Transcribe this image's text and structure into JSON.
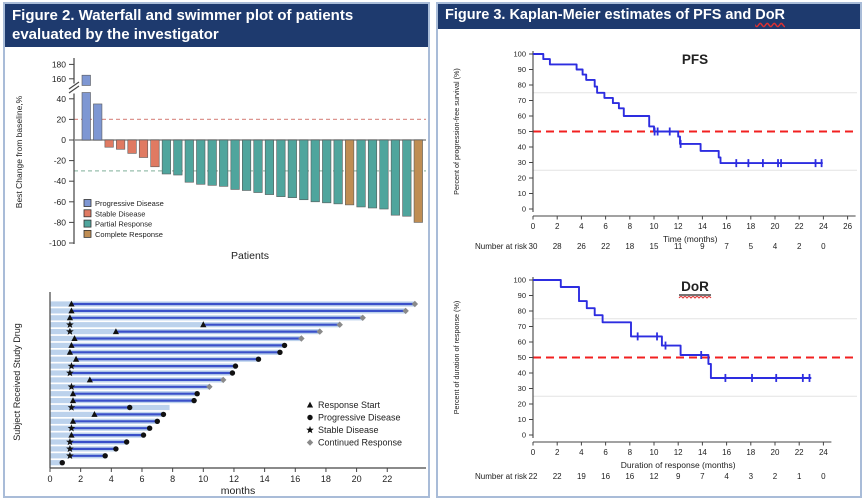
{
  "figure2": {
    "title": "Figure 2. Waterfall and swimmer plot of patients evaluated by the investigator"
  },
  "figure3": {
    "title_prefix": "Figure 3. Kaplan-Meier estimates of  PFS and  ",
    "title_dor": "DoR"
  },
  "colors": {
    "header_bg": "#1e3a6e",
    "panel_border": "#a9bcd8",
    "progressive": "#7e97d3",
    "stable": "#e07a62",
    "partial": "#4fa59d",
    "complete": "#bf8d53",
    "bar_stroke": "#5a5a5a",
    "ref_pos": "#dd958f",
    "ref_neg": "#98bfad",
    "swim_bar": "#bcd2ec",
    "swim_resp": "#3a50c9",
    "km_line": "#2d2de0",
    "median_line": "#f22020",
    "gray_ref": "#e3e3e3",
    "diamond": "#8a8a8a"
  },
  "chart_data": [
    {
      "id": "waterfall",
      "type": "bar",
      "xlabel": "Patients",
      "ylabel": "Best Change from baseline,%",
      "yticks": [
        180,
        160,
        40,
        20,
        0,
        -20,
        -40,
        -60,
        -80,
        -100
      ],
      "axis_break_between": [
        45,
        150
      ],
      "ref_lines": [
        {
          "y": 20,
          "color_key": "ref_pos"
        },
        {
          "y": -30,
          "color_key": "ref_neg"
        }
      ],
      "legend": [
        {
          "label": "Progressive Disease",
          "type": "progressive"
        },
        {
          "label": "Stable Disease",
          "type": "stable"
        },
        {
          "label": "Partial Response",
          "type": "partial"
        },
        {
          "label": "Complete Response",
          "type": "complete"
        }
      ],
      "bars": [
        {
          "v": 165,
          "t": "progressive"
        },
        {
          "v": 35,
          "t": "progressive"
        },
        {
          "v": -7,
          "t": "stable"
        },
        {
          "v": -9,
          "t": "stable"
        },
        {
          "v": -13,
          "t": "stable"
        },
        {
          "v": -17,
          "t": "stable"
        },
        {
          "v": -26,
          "t": "stable"
        },
        {
          "v": -33,
          "t": "partial"
        },
        {
          "v": -34,
          "t": "partial"
        },
        {
          "v": -41,
          "t": "partial"
        },
        {
          "v": -43,
          "t": "partial"
        },
        {
          "v": -44,
          "t": "partial"
        },
        {
          "v": -45,
          "t": "partial"
        },
        {
          "v": -48,
          "t": "partial"
        },
        {
          "v": -49,
          "t": "partial"
        },
        {
          "v": -51,
          "t": "partial"
        },
        {
          "v": -53,
          "t": "partial"
        },
        {
          "v": -55,
          "t": "partial"
        },
        {
          "v": -56,
          "t": "partial"
        },
        {
          "v": -58,
          "t": "partial"
        },
        {
          "v": -60,
          "t": "partial"
        },
        {
          "v": -61,
          "t": "partial"
        },
        {
          "v": -62,
          "t": "partial"
        },
        {
          "v": -63,
          "t": "complete"
        },
        {
          "v": -65,
          "t": "partial"
        },
        {
          "v": -66,
          "t": "partial"
        },
        {
          "v": -67,
          "t": "partial"
        },
        {
          "v": -73,
          "t": "partial"
        },
        {
          "v": -74,
          "t": "partial"
        },
        {
          "v": -80,
          "t": "complete"
        }
      ]
    },
    {
      "id": "swimmer",
      "type": "swimmer",
      "xlabel": "months",
      "ylabel": "Subject Received Study Drug",
      "xticks": [
        0,
        2,
        4,
        6,
        8,
        10,
        12,
        14,
        16,
        18,
        20,
        22
      ],
      "xmax": 24.5,
      "legend": [
        {
          "marker": "triangle",
          "label": "Response Start"
        },
        {
          "marker": "circle",
          "label": "Progressive Disease"
        },
        {
          "marker": "star",
          "label": "Stable Disease"
        },
        {
          "marker": "diamond",
          "label": "Continued Response"
        }
      ],
      "rows": [
        {
          "bar": 23.8,
          "line": [
            1.4,
            23.8
          ],
          "markers": [
            [
              "triangle",
              1.4
            ],
            [
              "diamond",
              23.8
            ]
          ]
        },
        {
          "bar": 23.2,
          "line": [
            1.4,
            23.2
          ],
          "markers": [
            [
              "triangle",
              1.4
            ],
            [
              "diamond",
              23.2
            ]
          ]
        },
        {
          "bar": 20.4,
          "line": [
            1.3,
            20.4
          ],
          "markers": [
            [
              "triangle",
              1.3
            ],
            [
              "diamond",
              20.4
            ]
          ]
        },
        {
          "bar": 18.9,
          "line": [
            10.0,
            18.9
          ],
          "markers": [
            [
              "star",
              1.3
            ],
            [
              "triangle",
              10.0
            ],
            [
              "diamond",
              18.9
            ]
          ]
        },
        {
          "bar": 17.6,
          "line": [
            4.3,
            17.6
          ],
          "markers": [
            [
              "star",
              1.3
            ],
            [
              "triangle",
              4.3
            ],
            [
              "diamond",
              17.6
            ]
          ]
        },
        {
          "bar": 16.4,
          "line": [
            1.6,
            16.4
          ],
          "markers": [
            [
              "triangle",
              1.6
            ],
            [
              "diamond",
              16.4
            ]
          ]
        },
        {
          "bar": 15.3,
          "line": [
            1.4,
            15.3
          ],
          "markers": [
            [
              "triangle",
              1.4
            ],
            [
              "circle",
              15.3
            ]
          ]
        },
        {
          "bar": 15.0,
          "line": [
            1.3,
            15.0
          ],
          "markers": [
            [
              "triangle",
              1.3
            ],
            [
              "circle",
              15.0
            ]
          ]
        },
        {
          "bar": 13.6,
          "line": [
            1.7,
            13.6
          ],
          "markers": [
            [
              "triangle",
              1.7
            ],
            [
              "circle",
              13.6
            ]
          ]
        },
        {
          "bar": 12.1,
          "line": [
            1.4,
            12.1
          ],
          "markers": [
            [
              "star",
              1.4
            ],
            [
              "circle",
              12.1
            ]
          ]
        },
        {
          "bar": 11.9,
          "line": [
            1.3,
            11.9
          ],
          "markers": [
            [
              "star",
              1.3
            ],
            [
              "circle",
              11.9
            ]
          ]
        },
        {
          "bar": 11.3,
          "line": [
            2.6,
            11.3
          ],
          "markers": [
            [
              "triangle",
              2.6
            ],
            [
              "diamond",
              11.3
            ]
          ]
        },
        {
          "bar": 10.4,
          "line": [
            1.4,
            10.4
          ],
          "markers": [
            [
              "star",
              1.4
            ],
            [
              "diamond",
              10.4
            ]
          ]
        },
        {
          "bar": 9.6,
          "line": [
            1.5,
            9.6
          ],
          "markers": [
            [
              "triangle",
              1.5
            ],
            [
              "circle",
              9.6
            ]
          ]
        },
        {
          "bar": 9.4,
          "line": [
            1.5,
            9.4
          ],
          "markers": [
            [
              "triangle",
              1.5
            ],
            [
              "circle",
              9.4
            ]
          ]
        },
        {
          "bar": 7.8,
          "line": [
            1.4,
            5.2
          ],
          "markers": [
            [
              "star",
              1.4
            ],
            [
              "circle",
              5.2
            ]
          ]
        },
        {
          "bar": 7.4,
          "line": [
            2.9,
            7.4
          ],
          "markers": [
            [
              "triangle",
              2.9
            ],
            [
              "circle",
              7.4
            ]
          ]
        },
        {
          "bar": 7.0,
          "line": [
            1.5,
            7.0
          ],
          "markers": [
            [
              "triangle",
              1.5
            ],
            [
              "circle",
              7.0
            ]
          ]
        },
        {
          "bar": 6.5,
          "line": [
            1.4,
            6.5
          ],
          "markers": [
            [
              "star",
              1.4
            ],
            [
              "circle",
              6.5
            ]
          ]
        },
        {
          "bar": 6.1,
          "line": [
            1.4,
            6.1
          ],
          "markers": [
            [
              "triangle",
              1.4
            ],
            [
              "circle",
              6.1
            ]
          ]
        },
        {
          "bar": 5.0,
          "line": [
            1.3,
            5.0
          ],
          "markers": [
            [
              "star",
              1.3
            ],
            [
              "circle",
              5.0
            ]
          ]
        },
        {
          "bar": 4.3,
          "line": [
            1.3,
            4.3
          ],
          "markers": [
            [
              "star",
              1.3
            ],
            [
              "circle",
              4.3
            ]
          ]
        },
        {
          "bar": 3.6,
          "line": [
            1.3,
            3.6
          ],
          "markers": [
            [
              "star",
              1.3
            ],
            [
              "circle",
              3.6
            ]
          ]
        },
        {
          "bar": 0.9,
          "line": null,
          "markers": [
            [
              "circle",
              0.8
            ]
          ]
        }
      ]
    },
    {
      "id": "km-pfs",
      "type": "line",
      "title": "PFS",
      "title_underline": false,
      "ylabel": "Percent of progression-free survival (%)",
      "xlabel": "Time (months)",
      "yticks": [
        100,
        90,
        80,
        70,
        60,
        50,
        40,
        30,
        20,
        10,
        0
      ],
      "xticks": [
        0,
        2,
        4,
        6,
        8,
        10,
        12,
        14,
        16,
        18,
        20,
        22,
        24,
        26
      ],
      "median_ref": 50,
      "gray_refs": [
        75,
        25
      ],
      "steps": [
        [
          0,
          100
        ],
        [
          0.85,
          100
        ],
        [
          0.85,
          96.7
        ],
        [
          1.4,
          96.7
        ],
        [
          1.4,
          93.3
        ],
        [
          3.6,
          93.3
        ],
        [
          3.6,
          90
        ],
        [
          4.1,
          90
        ],
        [
          4.1,
          86.7
        ],
        [
          4.4,
          86.7
        ],
        [
          4.4,
          83.3
        ],
        [
          5.1,
          83.3
        ],
        [
          5.1,
          79
        ],
        [
          5.3,
          79
        ],
        [
          5.3,
          75
        ],
        [
          5.9,
          75
        ],
        [
          5.9,
          71.7
        ],
        [
          6.6,
          71.7
        ],
        [
          6.6,
          68.3
        ],
        [
          7.1,
          68.3
        ],
        [
          7.1,
          65
        ],
        [
          7.5,
          65
        ],
        [
          7.5,
          60
        ],
        [
          9.6,
          60
        ],
        [
          9.6,
          53.3
        ],
        [
          10.0,
          53.3
        ],
        [
          10.0,
          50
        ],
        [
          12.0,
          50
        ],
        [
          12.0,
          46.7
        ],
        [
          12.15,
          46.7
        ],
        [
          12.15,
          42
        ],
        [
          13.85,
          42
        ],
        [
          13.85,
          37.5
        ],
        [
          15.35,
          37.5
        ],
        [
          15.35,
          33.3
        ],
        [
          15.5,
          33.3
        ],
        [
          15.5,
          29.6
        ],
        [
          23.95,
          29.6
        ]
      ],
      "censors": [
        [
          10.05,
          50
        ],
        [
          10.3,
          50
        ],
        [
          11.3,
          50
        ],
        [
          12.2,
          42
        ],
        [
          16.8,
          29.6
        ],
        [
          17.8,
          29.6
        ],
        [
          19.0,
          29.6
        ],
        [
          20.25,
          29.6
        ],
        [
          20.5,
          29.6
        ],
        [
          23.35,
          29.6
        ],
        [
          23.85,
          29.6
        ]
      ],
      "at_risk": {
        "label": "Number at risk",
        "times": [
          0,
          2,
          4,
          6,
          8,
          10,
          12,
          14,
          16,
          18,
          20,
          22,
          24
        ],
        "values": [
          30,
          28,
          26,
          22,
          18,
          15,
          11,
          9,
          7,
          5,
          4,
          2,
          0
        ]
      }
    },
    {
      "id": "km-dor",
      "type": "line",
      "title": "DoR",
      "title_underline": true,
      "ylabel": "Percent of duration of response (%)",
      "xlabel": "Duration of response (months)",
      "yticks": [
        100,
        90,
        80,
        70,
        60,
        50,
        40,
        30,
        20,
        10,
        0
      ],
      "xticks": [
        0,
        2,
        4,
        6,
        8,
        10,
        12,
        14,
        16,
        18,
        20,
        22,
        24
      ],
      "median_ref": 50,
      "gray_refs": [
        75,
        25
      ],
      "steps": [
        [
          0,
          100
        ],
        [
          2.3,
          100
        ],
        [
          2.3,
          95.5
        ],
        [
          3.8,
          95.5
        ],
        [
          3.8,
          86.4
        ],
        [
          4.45,
          86.4
        ],
        [
          4.45,
          81.8
        ],
        [
          5.1,
          81.8
        ],
        [
          5.1,
          77.3
        ],
        [
          5.75,
          77.3
        ],
        [
          5.75,
          72.7
        ],
        [
          8.1,
          72.7
        ],
        [
          8.1,
          63.6
        ],
        [
          10.65,
          63.6
        ],
        [
          10.65,
          57.7
        ],
        [
          12.2,
          57.7
        ],
        [
          12.2,
          51.6
        ],
        [
          14.5,
          51.6
        ],
        [
          14.5,
          45.9
        ],
        [
          14.7,
          45.9
        ],
        [
          14.7,
          36.8
        ],
        [
          23.0,
          36.8
        ]
      ],
      "censors": [
        [
          8.65,
          63.6
        ],
        [
          10.25,
          63.6
        ],
        [
          10.95,
          57.7
        ],
        [
          13.9,
          51.6
        ],
        [
          15.9,
          36.8
        ],
        [
          18.1,
          36.8
        ],
        [
          20.1,
          36.8
        ],
        [
          22.3,
          36.8
        ],
        [
          22.85,
          36.8
        ]
      ],
      "at_risk": {
        "label": "Number at risk",
        "times": [
          0,
          2,
          4,
          6,
          8,
          10,
          12,
          14,
          16,
          18,
          20,
          22,
          24
        ],
        "values": [
          22,
          22,
          19,
          16,
          16,
          12,
          9,
          7,
          4,
          3,
          2,
          1,
          0
        ]
      }
    }
  ]
}
